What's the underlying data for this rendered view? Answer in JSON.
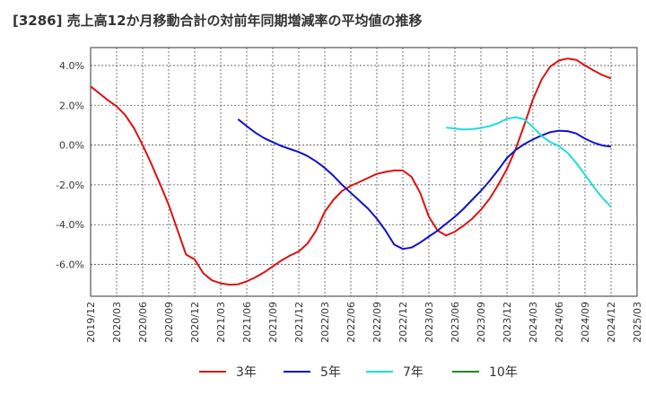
{
  "chart_data": {
    "type": "line",
    "title": "[3286]  売上高12か月移動合計の対前年同期増減率の平均値の推移",
    "xlabel": "",
    "ylabel": "",
    "ylim": [
      -7.6,
      4.9
    ],
    "y_ticks": [
      4.0,
      2.0,
      0.0,
      -2.0,
      -4.0,
      -6.0
    ],
    "y_tick_labels": [
      "4.0%",
      "2.0%",
      "0.0%",
      "-2.0%",
      "-4.0%",
      "-6.0%"
    ],
    "x_tick_labels": [
      "2019/12",
      "2020/03",
      "2020/06",
      "2020/09",
      "2020/12",
      "2021/03",
      "2021/06",
      "2021/09",
      "2021/12",
      "2022/03",
      "2022/06",
      "2022/09",
      "2022/12",
      "2023/03",
      "2023/06",
      "2023/09",
      "2023/12",
      "2024/03",
      "2024/06",
      "2024/09",
      "2024/12",
      "2025/03"
    ],
    "grid": true,
    "legend_position": "bottom",
    "series": [
      {
        "name": "3年",
        "color": "#dd1111",
        "points": [
          [
            "2019/12",
            2.95
          ],
          [
            "2020/01",
            2.6
          ],
          [
            "2020/02",
            2.25
          ],
          [
            "2020/03",
            1.95
          ],
          [
            "2020/04",
            1.5
          ],
          [
            "2020/05",
            0.85
          ],
          [
            "2020/06",
            0.0
          ],
          [
            "2020/07",
            -0.95
          ],
          [
            "2020/08",
            -1.95
          ],
          [
            "2020/09",
            -3.0
          ],
          [
            "2020/10",
            -4.25
          ],
          [
            "2020/11",
            -5.5
          ],
          [
            "2020/12",
            -5.75
          ],
          [
            "2021/01",
            -6.45
          ],
          [
            "2021/02",
            -6.8
          ],
          [
            "2021/03",
            -6.95
          ],
          [
            "2021/04",
            -7.02
          ],
          [
            "2021/05",
            -7.0
          ],
          [
            "2021/06",
            -6.85
          ],
          [
            "2021/07",
            -6.65
          ],
          [
            "2021/08",
            -6.4
          ],
          [
            "2021/09",
            -6.1
          ],
          [
            "2021/10",
            -5.8
          ],
          [
            "2021/11",
            -5.55
          ],
          [
            "2021/12",
            -5.35
          ],
          [
            "2022/01",
            -4.95
          ],
          [
            "2022/02",
            -4.3
          ],
          [
            "2022/03",
            -3.35
          ],
          [
            "2022/04",
            -2.75
          ],
          [
            "2022/05",
            -2.3
          ],
          [
            "2022/06",
            -2.05
          ],
          [
            "2022/07",
            -1.85
          ],
          [
            "2022/08",
            -1.65
          ],
          [
            "2022/09",
            -1.45
          ],
          [
            "2022/10",
            -1.35
          ],
          [
            "2022/11",
            -1.28
          ],
          [
            "2022/12",
            -1.28
          ],
          [
            "2023/01",
            -1.6
          ],
          [
            "2023/02",
            -2.4
          ],
          [
            "2023/03",
            -3.6
          ],
          [
            "2023/04",
            -4.3
          ],
          [
            "2023/05",
            -4.55
          ],
          [
            "2023/06",
            -4.35
          ],
          [
            "2023/07",
            -4.05
          ],
          [
            "2023/08",
            -3.7
          ],
          [
            "2023/09",
            -3.25
          ],
          [
            "2023/10",
            -2.7
          ],
          [
            "2023/11",
            -2.0
          ],
          [
            "2023/12",
            -1.2
          ],
          [
            "2024/01",
            -0.2
          ],
          [
            "2024/02",
            1.0
          ],
          [
            "2024/03",
            2.3
          ],
          [
            "2024/04",
            3.3
          ],
          [
            "2024/05",
            3.95
          ],
          [
            "2024/06",
            4.25
          ],
          [
            "2024/07",
            4.35
          ],
          [
            "2024/08",
            4.28
          ],
          [
            "2024/09",
            4.0
          ],
          [
            "2024/10",
            3.75
          ],
          [
            "2024/11",
            3.52
          ],
          [
            "2024/12",
            3.35
          ]
        ]
      },
      {
        "name": "5年",
        "color": "#1111cc",
        "points": [
          [
            "2021/05",
            1.3
          ],
          [
            "2021/06",
            0.95
          ],
          [
            "2021/07",
            0.62
          ],
          [
            "2021/08",
            0.35
          ],
          [
            "2021/09",
            0.15
          ],
          [
            "2021/10",
            -0.05
          ],
          [
            "2021/11",
            -0.2
          ],
          [
            "2021/12",
            -0.35
          ],
          [
            "2022/01",
            -0.55
          ],
          [
            "2022/02",
            -0.82
          ],
          [
            "2022/03",
            -1.15
          ],
          [
            "2022/04",
            -1.55
          ],
          [
            "2022/05",
            -2.0
          ],
          [
            "2022/06",
            -2.4
          ],
          [
            "2022/07",
            -2.8
          ],
          [
            "2022/08",
            -3.2
          ],
          [
            "2022/09",
            -3.7
          ],
          [
            "2022/10",
            -4.3
          ],
          [
            "2022/11",
            -5.0
          ],
          [
            "2022/12",
            -5.22
          ],
          [
            "2023/01",
            -5.15
          ],
          [
            "2023/02",
            -4.9
          ],
          [
            "2023/03",
            -4.6
          ],
          [
            "2023/04",
            -4.3
          ],
          [
            "2023/05",
            -3.95
          ],
          [
            "2023/06",
            -3.6
          ],
          [
            "2023/07",
            -3.2
          ],
          [
            "2023/08",
            -2.75
          ],
          [
            "2023/09",
            -2.3
          ],
          [
            "2023/10",
            -1.8
          ],
          [
            "2023/11",
            -1.25
          ],
          [
            "2023/12",
            -0.65
          ],
          [
            "2024/01",
            -0.25
          ],
          [
            "2024/02",
            0.05
          ],
          [
            "2024/03",
            0.28
          ],
          [
            "2024/04",
            0.48
          ],
          [
            "2024/05",
            0.65
          ],
          [
            "2024/06",
            0.72
          ],
          [
            "2024/07",
            0.7
          ],
          [
            "2024/08",
            0.58
          ],
          [
            "2024/09",
            0.32
          ],
          [
            "2024/10",
            0.12
          ],
          [
            "2024/11",
            -0.02
          ],
          [
            "2024/12",
            -0.08
          ]
        ]
      },
      {
        "name": "7年",
        "color": "#22dddd",
        "points": [
          [
            "2023/05",
            0.88
          ],
          [
            "2023/06",
            0.83
          ],
          [
            "2023/07",
            0.78
          ],
          [
            "2023/08",
            0.8
          ],
          [
            "2023/09",
            0.86
          ],
          [
            "2023/10",
            0.95
          ],
          [
            "2023/11",
            1.1
          ],
          [
            "2023/12",
            1.32
          ],
          [
            "2024/01",
            1.4
          ],
          [
            "2024/02",
            1.3
          ],
          [
            "2024/03",
            0.9
          ],
          [
            "2024/04",
            0.45
          ],
          [
            "2024/05",
            0.15
          ],
          [
            "2024/06",
            -0.05
          ],
          [
            "2024/07",
            -0.4
          ],
          [
            "2024/08",
            -0.9
          ],
          [
            "2024/09",
            -1.5
          ],
          [
            "2024/10",
            -2.1
          ],
          [
            "2024/11",
            -2.65
          ],
          [
            "2024/12",
            -3.1
          ]
        ]
      },
      {
        "name": "10年",
        "color": "#228822",
        "points": []
      }
    ]
  }
}
